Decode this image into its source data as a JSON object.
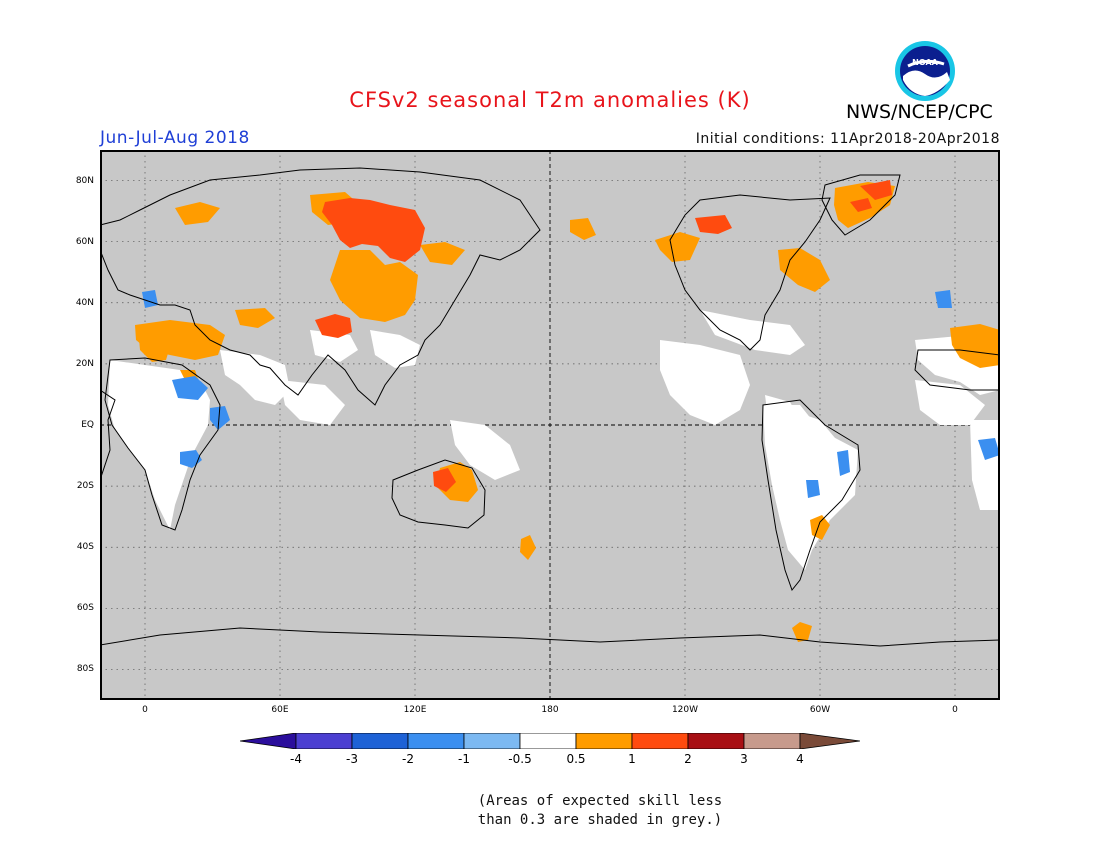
{
  "header": {
    "title": "CFSv2 seasonal T2m anomalies (K)",
    "season": "Jun-Jul-Aug 2018",
    "initial_conditions": "Initial conditions: 11Apr2018-20Apr2018",
    "agency": "NWS/NCEP/CPC",
    "logo_text": "NOAA"
  },
  "axes": {
    "lat_ticks": [
      "80N",
      "60N",
      "40N",
      "20N",
      "EQ",
      "20S",
      "40S",
      "60S",
      "80S"
    ],
    "lon_ticks": [
      "0",
      "60E",
      "120E",
      "180",
      "120W",
      "60W",
      "0"
    ],
    "lat_range": [
      -90,
      90
    ],
    "lon_range": [
      -20,
      380
    ]
  },
  "colorbar": {
    "labels": [
      "-4",
      "-3",
      "-2",
      "-1",
      "-0.5",
      "0.5",
      "1",
      "2",
      "3",
      "4"
    ],
    "colors": [
      "#2b0e9c",
      "#4b3fd1",
      "#1e62d6",
      "#3b8ff0",
      "#7cb9f2",
      "#ffffff",
      "#ff9c00",
      "#ff4b0f",
      "#a80f14",
      "#c79a8c",
      "#7a4a38"
    ]
  },
  "colors": {
    "title": "#e8141b",
    "season": "#1f3fd6",
    "skill_grey": "#c8c8c8",
    "neutral": "#ffffff"
  },
  "footnote": {
    "line1": "(Areas of expected skill less",
    "line2": "than 0.3 are shaded in grey.)"
  }
}
